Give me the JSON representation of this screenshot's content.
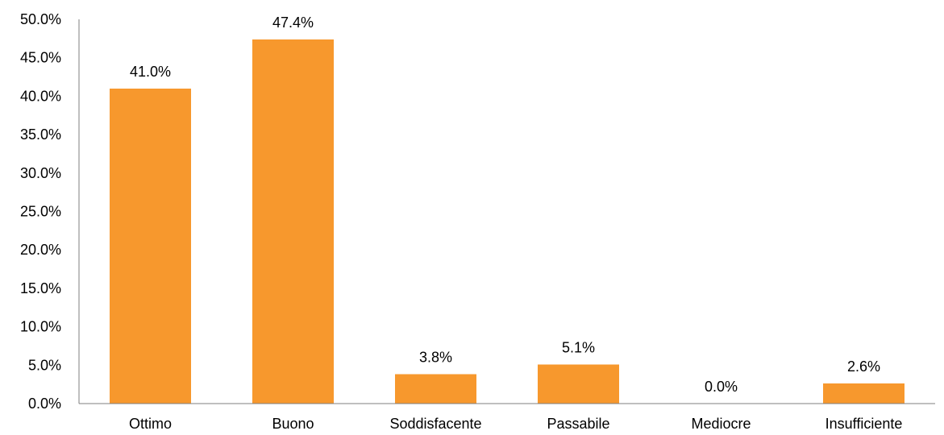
{
  "chart_data": {
    "type": "bar",
    "categories": [
      "Ottimo",
      "Buono",
      "Soddisfacente",
      "Passabile",
      "Mediocre",
      "Insufficiente"
    ],
    "values": [
      41.0,
      47.4,
      3.8,
      5.1,
      0.0,
      2.6
    ],
    "data_labels": [
      "41.0%",
      "47.4%",
      "3.8%",
      "5.1%",
      "0.0%",
      "2.6%"
    ],
    "y_ticks": [
      "0.0%",
      "5.0%",
      "10.0%",
      "15.0%",
      "20.0%",
      "25.0%",
      "30.0%",
      "35.0%",
      "40.0%",
      "45.0%",
      "50.0%"
    ],
    "ylim": [
      0,
      50
    ],
    "y_step": 5,
    "grid": false,
    "legend": "none",
    "bar_color": "#f7982d",
    "axis_color": "#7f7f7f"
  }
}
